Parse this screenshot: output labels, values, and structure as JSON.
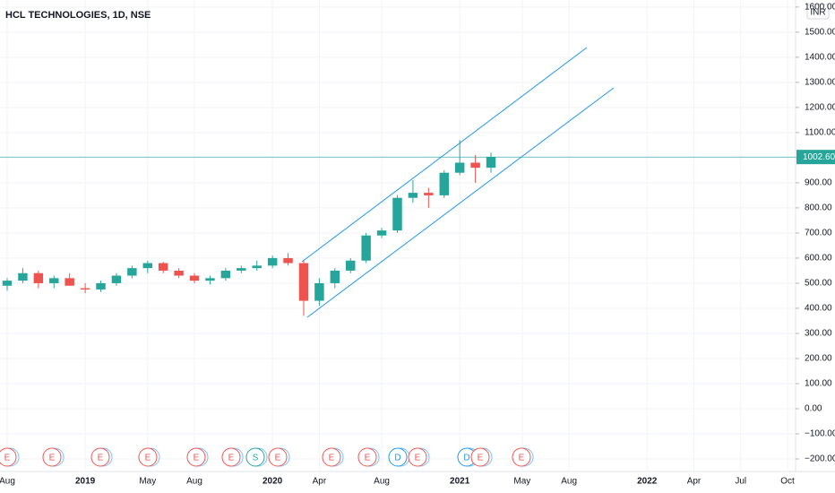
{
  "chart_data": {
    "type": "candlestick",
    "title": "HCL TECHNOLOGIES, 1D, NSE",
    "currency": "INR",
    "categories": [
      "Aug",
      null,
      null,
      null,
      null,
      "2019",
      null,
      null,
      null,
      "May",
      null,
      null,
      "Aug",
      null,
      null,
      null,
      null,
      "2020",
      null,
      null,
      "Apr",
      null,
      null,
      null,
      "Aug",
      null,
      null,
      null,
      null,
      "2021",
      null,
      null,
      null,
      "May",
      null,
      null,
      "Aug",
      null,
      null,
      null,
      null,
      "2022",
      null,
      null,
      "Apr",
      null,
      null,
      "Jul",
      null,
      null,
      "Oct"
    ],
    "open": [
      490,
      510,
      540,
      500,
      520,
      480,
      475,
      500,
      530,
      560,
      580,
      550,
      530,
      510,
      520,
      550,
      560,
      570,
      600,
      580,
      430,
      500,
      550,
      590,
      690,
      710,
      840,
      860,
      850,
      940,
      980,
      960,
      null,
      null,
      null,
      null,
      null,
      null,
      null,
      null,
      null,
      null,
      null,
      null,
      null,
      null,
      null,
      null,
      null,
      null,
      null
    ],
    "high": [
      520,
      560,
      550,
      530,
      540,
      500,
      510,
      540,
      570,
      590,
      585,
      560,
      540,
      530,
      560,
      570,
      590,
      610,
      620,
      590,
      520,
      560,
      600,
      700,
      720,
      850,
      910,
      880,
      950,
      1070,
      1010,
      1020,
      null,
      null,
      null,
      null,
      null,
      null,
      null,
      null,
      null,
      null,
      null,
      null,
      null,
      null,
      null,
      null,
      null,
      null,
      null
    ],
    "low": [
      470,
      500,
      480,
      480,
      490,
      460,
      465,
      490,
      520,
      540,
      540,
      520,
      500,
      495,
      510,
      540,
      550,
      560,
      570,
      370,
      410,
      480,
      540,
      580,
      680,
      700,
      820,
      800,
      840,
      930,
      900,
      940,
      null,
      null,
      null,
      null,
      null,
      null,
      null,
      null,
      null,
      null,
      null,
      null,
      null,
      null,
      null,
      null,
      null,
      null,
      null
    ],
    "close": [
      510,
      540,
      500,
      520,
      490,
      475,
      500,
      530,
      560,
      580,
      550,
      530,
      510,
      520,
      550,
      560,
      570,
      600,
      580,
      430,
      500,
      550,
      590,
      690,
      710,
      840,
      860,
      850,
      940,
      980,
      960,
      1002.6,
      null,
      null,
      null,
      null,
      null,
      null,
      null,
      null,
      null,
      null,
      null,
      null,
      null,
      null,
      null,
      null,
      null,
      null,
      null
    ],
    "up_color": "#26a69a",
    "down_color": "#ef5350",
    "grid": true,
    "ylim": [
      -250,
      1628
    ],
    "yticks": [
      {
        "value": 1600,
        "label": "1600.00"
      },
      {
        "value": 1500,
        "label": "1500.00"
      },
      {
        "value": 1400,
        "label": "1400.00"
      },
      {
        "value": 1300,
        "label": "1300.00"
      },
      {
        "value": 1200,
        "label": "1200.00"
      },
      {
        "value": 1100,
        "label": "1100.00"
      },
      {
        "value": 1000,
        "label": "1000.00"
      },
      {
        "value": 900,
        "label": "900.00"
      },
      {
        "value": 800,
        "label": "800.00"
      },
      {
        "value": 700,
        "label": "700.00"
      },
      {
        "value": 600,
        "label": "600.00"
      },
      {
        "value": 500,
        "label": "500.00"
      },
      {
        "value": 400,
        "label": "400.00"
      },
      {
        "value": 300,
        "label": "300.00"
      },
      {
        "value": 200,
        "label": "200.00"
      },
      {
        "value": 100,
        "label": "100.00"
      },
      {
        "value": 0,
        "label": "0.00"
      },
      {
        "value": -100,
        "label": "−100.00"
      },
      {
        "value": -200,
        "label": "−200.00"
      }
    ],
    "last_price": {
      "value": 1002.6,
      "label": "1002.60"
    },
    "events": [
      "E",
      "E",
      "E",
      "E",
      "E",
      "E",
      "S",
      "E",
      "E",
      "E",
      "D",
      "E",
      "D",
      "E",
      "E"
    ]
  }
}
